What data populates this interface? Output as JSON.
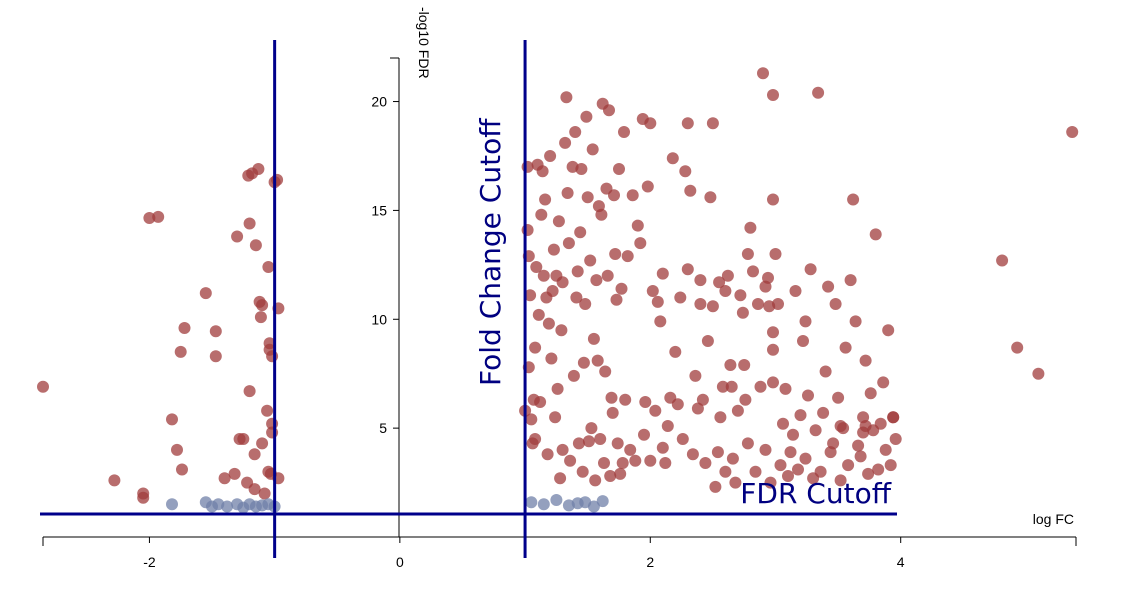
{
  "chart_data": {
    "type": "scatter",
    "title": "",
    "xlabel": "log FC",
    "ylabel": "-log10 FDR",
    "xlim": [
      -2.85,
      5.4
    ],
    "ylim": [
      0,
      22
    ],
    "x_ticks": [
      {
        "value": -2,
        "label": "-2"
      },
      {
        "value": 0,
        "label": "0"
      },
      {
        "value": 2,
        "label": "2"
      },
      {
        "value": 4,
        "label": "4"
      }
    ],
    "y_ticks": [
      {
        "value": 5,
        "label": "5"
      },
      {
        "value": 10,
        "label": "10"
      },
      {
        "value": 15,
        "label": "15"
      },
      {
        "value": 20,
        "label": "20"
      }
    ],
    "grid": false,
    "legend": "none",
    "colors": {
      "significant": "#a03c3c",
      "not_significant": "#7080a8",
      "cutoff_line": "#00008b",
      "cutoff_text": "#000080"
    },
    "cutoffs": {
      "fold_change": {
        "values": [
          -1,
          1
        ],
        "label": "Fold Change Cutoff"
      },
      "fdr": {
        "value": 1.0,
        "label": "FDR Cutoff"
      }
    },
    "series": [
      {
        "status": "significant",
        "points": [
          [
            -2.85,
            6.9
          ],
          [
            -2.28,
            2.6
          ],
          [
            -2.05,
            2.0
          ],
          [
            -2.05,
            1.8
          ],
          [
            -2.0,
            14.65
          ],
          [
            -1.93,
            14.7
          ],
          [
            -1.82,
            5.4
          ],
          [
            -1.78,
            4.0
          ],
          [
            -1.75,
            8.5
          ],
          [
            -1.74,
            3.1
          ],
          [
            -1.72,
            9.6
          ],
          [
            -1.55,
            11.2
          ],
          [
            -1.47,
            9.45
          ],
          [
            -1.47,
            8.3
          ],
          [
            -1.4,
            2.7
          ],
          [
            -1.32,
            2.9
          ],
          [
            -1.3,
            13.8
          ],
          [
            -1.28,
            4.5
          ],
          [
            -1.25,
            4.5
          ],
          [
            -1.22,
            2.5
          ],
          [
            -1.21,
            16.6
          ],
          [
            -1.2,
            14.4
          ],
          [
            -1.2,
            6.7
          ],
          [
            -1.18,
            16.7
          ],
          [
            -1.16,
            3.8
          ],
          [
            -1.16,
            2.2
          ],
          [
            -1.15,
            13.4
          ],
          [
            -1.13,
            16.9
          ],
          [
            -1.12,
            10.8
          ],
          [
            -1.11,
            10.1
          ],
          [
            -1.1,
            10.65
          ],
          [
            -1.1,
            4.3
          ],
          [
            -1.08,
            2.0
          ],
          [
            -1.06,
            5.8
          ],
          [
            -1.05,
            12.4
          ],
          [
            -1.05,
            3.0
          ],
          [
            -1.04,
            8.9
          ],
          [
            -1.04,
            8.6
          ],
          [
            -1.03,
            2.9
          ],
          [
            -1.02,
            5.2
          ],
          [
            -1.02,
            4.8
          ],
          [
            -1.02,
            8.3
          ],
          [
            -1.0,
            16.3
          ],
          [
            -0.98,
            16.4
          ],
          [
            -0.97,
            10.5
          ],
          [
            -0.97,
            2.7
          ],
          [
            1.0,
            5.8
          ],
          [
            1.02,
            17.0
          ],
          [
            1.02,
            14.1
          ],
          [
            1.03,
            12.9
          ],
          [
            1.03,
            7.8
          ],
          [
            1.04,
            11.1
          ],
          [
            1.05,
            5.4
          ],
          [
            1.06,
            4.3
          ],
          [
            1.07,
            6.3
          ],
          [
            1.08,
            8.7
          ],
          [
            1.08,
            4.5
          ],
          [
            1.09,
            12.4
          ],
          [
            1.1,
            17.1
          ],
          [
            1.11,
            10.2
          ],
          [
            1.12,
            6.2
          ],
          [
            1.13,
            14.8
          ],
          [
            1.14,
            16.8
          ],
          [
            1.15,
            12.0
          ],
          [
            1.16,
            15.5
          ],
          [
            1.17,
            11.0
          ],
          [
            1.18,
            3.8
          ],
          [
            1.19,
            9.8
          ],
          [
            1.2,
            17.5
          ],
          [
            1.21,
            8.2
          ],
          [
            1.22,
            11.3
          ],
          [
            1.23,
            13.2
          ],
          [
            1.24,
            5.5
          ],
          [
            1.25,
            12.0
          ],
          [
            1.26,
            6.8
          ],
          [
            1.27,
            14.5
          ],
          [
            1.28,
            2.7
          ],
          [
            1.29,
            9.5
          ],
          [
            1.3,
            4.0
          ],
          [
            1.3,
            11.7
          ],
          [
            1.32,
            18.1
          ],
          [
            1.33,
            20.2
          ],
          [
            1.34,
            15.8
          ],
          [
            1.35,
            13.5
          ],
          [
            1.36,
            3.5
          ],
          [
            1.38,
            17.0
          ],
          [
            1.39,
            7.4
          ],
          [
            1.4,
            18.6
          ],
          [
            1.41,
            11.0
          ],
          [
            1.42,
            12.2
          ],
          [
            1.43,
            4.3
          ],
          [
            1.44,
            14.0
          ],
          [
            1.45,
            16.9
          ],
          [
            1.46,
            3.0
          ],
          [
            1.47,
            8.0
          ],
          [
            1.48,
            10.7
          ],
          [
            1.49,
            19.3
          ],
          [
            1.5,
            15.6
          ],
          [
            1.51,
            4.4
          ],
          [
            1.52,
            12.7
          ],
          [
            1.53,
            5.0
          ],
          [
            1.54,
            17.8
          ],
          [
            1.55,
            9.1
          ],
          [
            1.56,
            2.6
          ],
          [
            1.57,
            11.8
          ],
          [
            1.58,
            8.1
          ],
          [
            1.59,
            15.2
          ],
          [
            1.6,
            4.5
          ],
          [
            1.61,
            14.8
          ],
          [
            1.62,
            19.9
          ],
          [
            1.63,
            3.4
          ],
          [
            1.64,
            7.6
          ],
          [
            1.65,
            16.0
          ],
          [
            1.66,
            12.0
          ],
          [
            1.67,
            19.6
          ],
          [
            1.68,
            2.8
          ],
          [
            1.69,
            6.4
          ],
          [
            1.7,
            5.7
          ],
          [
            1.71,
            15.7
          ],
          [
            1.72,
            13.0
          ],
          [
            1.73,
            10.9
          ],
          [
            1.74,
            4.3
          ],
          [
            1.75,
            16.9
          ],
          [
            1.76,
            2.9
          ],
          [
            1.77,
            11.4
          ],
          [
            1.78,
            3.4
          ],
          [
            1.79,
            18.6
          ],
          [
            1.8,
            6.3
          ],
          [
            1.82,
            12.9
          ],
          [
            1.84,
            4.0
          ],
          [
            1.86,
            15.7
          ],
          [
            1.88,
            3.5
          ],
          [
            1.9,
            14.3
          ],
          [
            1.92,
            13.5
          ],
          [
            1.94,
            19.2
          ],
          [
            1.95,
            4.7
          ],
          [
            1.96,
            6.2
          ],
          [
            1.98,
            16.1
          ],
          [
            2.0,
            3.5
          ],
          [
            2.02,
            11.3
          ],
          [
            2.04,
            5.8
          ],
          [
            2.06,
            10.8
          ],
          [
            2.08,
            9.9
          ],
          [
            2.1,
            12.1
          ],
          [
            2.12,
            3.4
          ],
          [
            2.14,
            5.1
          ],
          [
            2.16,
            6.4
          ],
          [
            2.18,
            17.4
          ],
          [
            2.2,
            8.5
          ],
          [
            2.22,
            6.1
          ],
          [
            2.24,
            11.0
          ],
          [
            2.26,
            4.5
          ],
          [
            2.28,
            16.8
          ],
          [
            2.3,
            19.0
          ],
          [
            2.32,
            15.9
          ],
          [
            2.34,
            3.8
          ],
          [
            2.36,
            7.4
          ],
          [
            2.38,
            5.9
          ],
          [
            2.4,
            11.8
          ],
          [
            2.42,
            6.3
          ],
          [
            2.44,
            3.4
          ],
          [
            2.46,
            9.0
          ],
          [
            2.48,
            15.6
          ],
          [
            2.5,
            19.0
          ],
          [
            2.52,
            2.3
          ],
          [
            2.54,
            3.9
          ],
          [
            2.56,
            5.5
          ],
          [
            2.58,
            6.9
          ],
          [
            2.6,
            3.0
          ],
          [
            2.62,
            12.0
          ],
          [
            2.64,
            7.9
          ],
          [
            2.66,
            3.6
          ],
          [
            2.68,
            2.5
          ],
          [
            2.7,
            5.8
          ],
          [
            2.72,
            11.1
          ],
          [
            2.74,
            10.3
          ],
          [
            2.76,
            6.3
          ],
          [
            2.78,
            4.3
          ],
          [
            2.8,
            14.2
          ],
          [
            2.82,
            12.2
          ],
          [
            2.84,
            3.0
          ],
          [
            2.86,
            10.7
          ],
          [
            2.88,
            6.9
          ],
          [
            2.9,
            21.3
          ],
          [
            2.92,
            4.0
          ],
          [
            2.94,
            11.9
          ],
          [
            2.96,
            2.5
          ],
          [
            2.98,
            7.1
          ],
          [
            3.0,
            13.0
          ],
          [
            3.02,
            10.7
          ],
          [
            3.04,
            3.3
          ],
          [
            3.06,
            5.2
          ],
          [
            3.08,
            6.8
          ],
          [
            3.1,
            2.8
          ],
          [
            3.12,
            3.9
          ],
          [
            3.14,
            4.7
          ],
          [
            3.16,
            11.3
          ],
          [
            3.18,
            3.1
          ],
          [
            3.2,
            5.6
          ],
          [
            3.22,
            9.0
          ],
          [
            3.24,
            3.6
          ],
          [
            3.26,
            6.5
          ],
          [
            3.28,
            12.3
          ],
          [
            3.3,
            2.7
          ],
          [
            3.32,
            4.9
          ],
          [
            3.34,
            20.4
          ],
          [
            3.36,
            3.0
          ],
          [
            3.38,
            5.7
          ],
          [
            3.4,
            7.6
          ],
          [
            3.42,
            11.5
          ],
          [
            3.44,
            3.9
          ],
          [
            3.46,
            4.3
          ],
          [
            3.48,
            10.7
          ],
          [
            3.5,
            6.4
          ],
          [
            3.52,
            2.6
          ],
          [
            3.54,
            5.0
          ],
          [
            3.56,
            8.7
          ],
          [
            3.58,
            3.3
          ],
          [
            3.6,
            11.8
          ],
          [
            3.62,
            15.5
          ],
          [
            3.64,
            9.9
          ],
          [
            3.66,
            4.2
          ],
          [
            3.68,
            3.7
          ],
          [
            3.7,
            5.5
          ],
          [
            3.72,
            8.1
          ],
          [
            3.74,
            2.9
          ],
          [
            3.76,
            6.6
          ],
          [
            3.78,
            4.9
          ],
          [
            3.8,
            13.9
          ],
          [
            3.82,
            3.1
          ],
          [
            3.84,
            5.2
          ],
          [
            3.86,
            7.1
          ],
          [
            3.88,
            4.0
          ],
          [
            3.9,
            9.5
          ],
          [
            3.92,
            3.3
          ],
          [
            3.94,
            5.5
          ],
          [
            3.96,
            4.5
          ],
          [
            2.1,
            4.1
          ],
          [
            2.0,
            19.0
          ],
          [
            2.3,
            12.3
          ],
          [
            2.4,
            10.7
          ],
          [
            2.5,
            10.6
          ],
          [
            2.55,
            11.7
          ],
          [
            2.6,
            11.3
          ],
          [
            2.65,
            6.9
          ],
          [
            2.75,
            7.9
          ],
          [
            2.78,
            13.0
          ],
          [
            2.92,
            11.5
          ],
          [
            2.95,
            10.6
          ],
          [
            2.98,
            9.4
          ],
          [
            2.98,
            8.6
          ],
          [
            2.98,
            15.5
          ],
          [
            2.98,
            20.3
          ],
          [
            3.24,
            9.9
          ],
          [
            3.52,
            5.1
          ],
          [
            3.7,
            4.8
          ],
          [
            3.72,
            5.1
          ],
          [
            3.94,
            5.5
          ],
          [
            4.81,
            12.7
          ],
          [
            4.93,
            8.7
          ],
          [
            5.1,
            7.5
          ],
          [
            5.37,
            18.6
          ]
        ]
      },
      {
        "status": "not_significant",
        "points": [
          [
            -1.82,
            1.5
          ],
          [
            -1.55,
            1.6
          ],
          [
            -1.5,
            1.4
          ],
          [
            -1.45,
            1.5
          ],
          [
            -1.38,
            1.4
          ],
          [
            -1.3,
            1.5
          ],
          [
            -1.25,
            1.35
          ],
          [
            -1.2,
            1.5
          ],
          [
            -1.15,
            1.4
          ],
          [
            -1.1,
            1.45
          ],
          [
            -1.05,
            1.5
          ],
          [
            -1.0,
            1.4
          ],
          [
            1.05,
            1.6
          ],
          [
            1.15,
            1.5
          ],
          [
            1.25,
            1.7
          ],
          [
            1.35,
            1.45
          ],
          [
            1.42,
            1.55
          ],
          [
            1.48,
            1.6
          ],
          [
            1.55,
            1.4
          ],
          [
            1.62,
            1.65
          ]
        ]
      }
    ]
  }
}
